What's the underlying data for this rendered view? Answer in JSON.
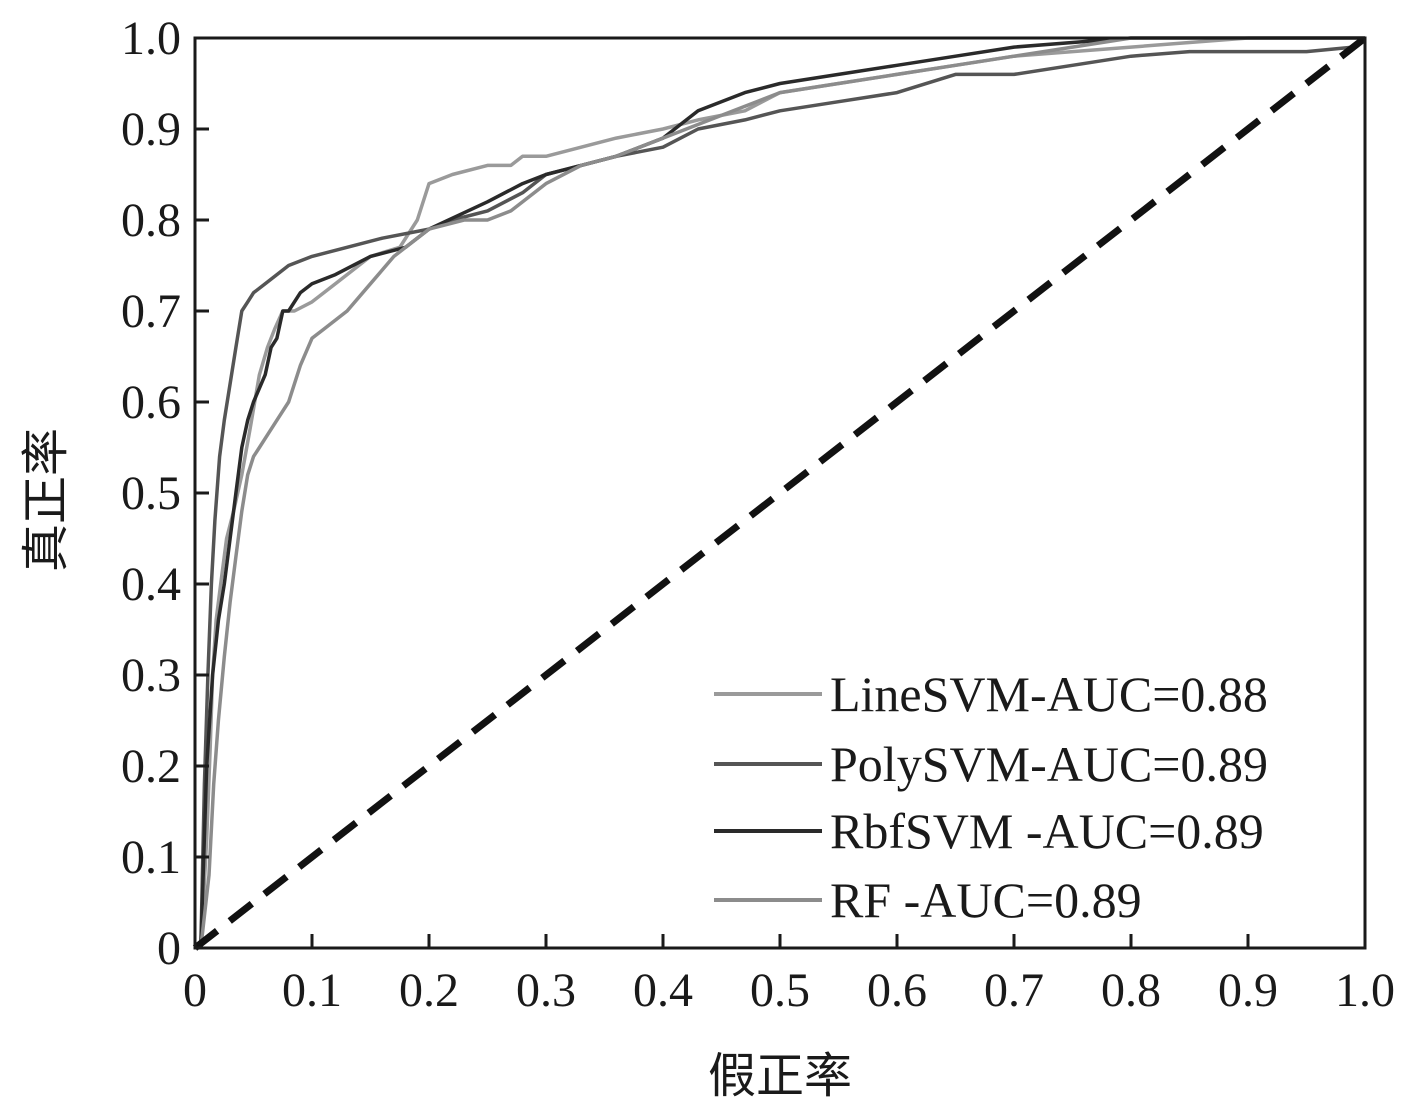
{
  "chart_data": {
    "type": "line",
    "title": "",
    "xlabel": "假正率",
    "ylabel": "真正率",
    "xlim": [
      0,
      1
    ],
    "ylim": [
      0,
      1
    ],
    "xticks": [
      "0",
      "0.1",
      "0.2",
      "0.3",
      "0.4",
      "0.5",
      "0.6",
      "0.7",
      "0.8",
      "0.9",
      "1.0"
    ],
    "yticks": [
      "0",
      "0.1",
      "0.2",
      "0.3",
      "0.4",
      "0.5",
      "0.6",
      "0.7",
      "0.8",
      "0.9",
      "1.0"
    ],
    "grid": false,
    "legend_position": "bottom-right",
    "reference_line": {
      "x": [
        0,
        1
      ],
      "y": [
        0,
        1
      ],
      "style": "dashed",
      "color": "#111111"
    },
    "series": [
      {
        "name": "LineSVM-AUC=0.88",
        "color": "#9a9a9a",
        "x": [
          0.005,
          0.01,
          0.013,
          0.015,
          0.018,
          0.022,
          0.027,
          0.033,
          0.04,
          0.047,
          0.055,
          0.062,
          0.068,
          0.075,
          0.085,
          0.1,
          0.12,
          0.15,
          0.175,
          0.19,
          0.2,
          0.22,
          0.25,
          0.27,
          0.28,
          0.3,
          0.33,
          0.36,
          0.4,
          0.43,
          0.47,
          0.5,
          0.55,
          0.6,
          0.65,
          0.7,
          0.75,
          0.8,
          0.85,
          0.9,
          0.95,
          1.0
        ],
        "y": [
          0,
          0.12,
          0.22,
          0.3,
          0.36,
          0.4,
          0.45,
          0.48,
          0.52,
          0.57,
          0.63,
          0.66,
          0.68,
          0.7,
          0.7,
          0.71,
          0.73,
          0.76,
          0.77,
          0.8,
          0.84,
          0.85,
          0.86,
          0.86,
          0.87,
          0.87,
          0.88,
          0.89,
          0.9,
          0.91,
          0.92,
          0.94,
          0.95,
          0.96,
          0.97,
          0.98,
          0.985,
          0.99,
          0.995,
          1.0,
          1.0,
          1.0
        ]
      },
      {
        "name": "PolySVM-AUC=0.89",
        "color": "#555555",
        "x": [
          0.005,
          0.008,
          0.011,
          0.014,
          0.017,
          0.021,
          0.025,
          0.03,
          0.035,
          0.04,
          0.045,
          0.05,
          0.06,
          0.07,
          0.08,
          0.1,
          0.13,
          0.16,
          0.2,
          0.22,
          0.25,
          0.28,
          0.3,
          0.33,
          0.36,
          0.4,
          0.43,
          0.47,
          0.5,
          0.55,
          0.6,
          0.65,
          0.7,
          0.75,
          0.8,
          0.85,
          0.9,
          0.95,
          0.99,
          1.0
        ],
        "y": [
          0,
          0.18,
          0.3,
          0.4,
          0.47,
          0.54,
          0.58,
          0.62,
          0.66,
          0.7,
          0.71,
          0.72,
          0.73,
          0.74,
          0.75,
          0.76,
          0.77,
          0.78,
          0.79,
          0.8,
          0.81,
          0.83,
          0.85,
          0.86,
          0.87,
          0.88,
          0.9,
          0.91,
          0.92,
          0.93,
          0.94,
          0.96,
          0.96,
          0.97,
          0.98,
          0.985,
          0.985,
          0.985,
          0.99,
          1.0
        ]
      },
      {
        "name": "RbfSVM -AUC=0.89",
        "color": "#2a2a2a",
        "x": [
          0.005,
          0.01,
          0.015,
          0.02,
          0.025,
          0.03,
          0.035,
          0.04,
          0.045,
          0.05,
          0.06,
          0.065,
          0.07,
          0.075,
          0.08,
          0.09,
          0.1,
          0.12,
          0.15,
          0.18,
          0.2,
          0.25,
          0.28,
          0.3,
          0.33,
          0.36,
          0.4,
          0.43,
          0.47,
          0.5,
          0.55,
          0.6,
          0.65,
          0.7,
          0.75,
          0.8,
          0.85,
          0.9,
          0.95,
          1.0
        ],
        "y": [
          0,
          0.2,
          0.3,
          0.36,
          0.4,
          0.45,
          0.5,
          0.55,
          0.58,
          0.6,
          0.63,
          0.66,
          0.67,
          0.7,
          0.7,
          0.72,
          0.73,
          0.74,
          0.76,
          0.77,
          0.79,
          0.82,
          0.84,
          0.85,
          0.86,
          0.87,
          0.89,
          0.92,
          0.94,
          0.95,
          0.96,
          0.97,
          0.98,
          0.99,
          0.995,
          1.0,
          1.0,
          1.0,
          1.0,
          1.0
        ]
      },
      {
        "name": "RF -AUC=0.89",
        "color": "#8c8c8c",
        "x": [
          0.005,
          0.012,
          0.016,
          0.02,
          0.025,
          0.03,
          0.035,
          0.04,
          0.045,
          0.05,
          0.055,
          0.06,
          0.07,
          0.08,
          0.09,
          0.1,
          0.11,
          0.13,
          0.15,
          0.17,
          0.2,
          0.23,
          0.25,
          0.27,
          0.3,
          0.33,
          0.36,
          0.4,
          0.44,
          0.48,
          0.5,
          0.55,
          0.6,
          0.65,
          0.7,
          0.75,
          0.8,
          0.85,
          0.9,
          0.95,
          1.0
        ],
        "y": [
          0,
          0.08,
          0.18,
          0.25,
          0.32,
          0.38,
          0.43,
          0.48,
          0.52,
          0.54,
          0.55,
          0.56,
          0.58,
          0.6,
          0.64,
          0.67,
          0.68,
          0.7,
          0.73,
          0.76,
          0.79,
          0.8,
          0.8,
          0.81,
          0.84,
          0.86,
          0.87,
          0.89,
          0.91,
          0.93,
          0.94,
          0.95,
          0.96,
          0.97,
          0.98,
          0.99,
          1.0,
          1.0,
          1.0,
          1.0,
          1.0
        ]
      }
    ]
  }
}
